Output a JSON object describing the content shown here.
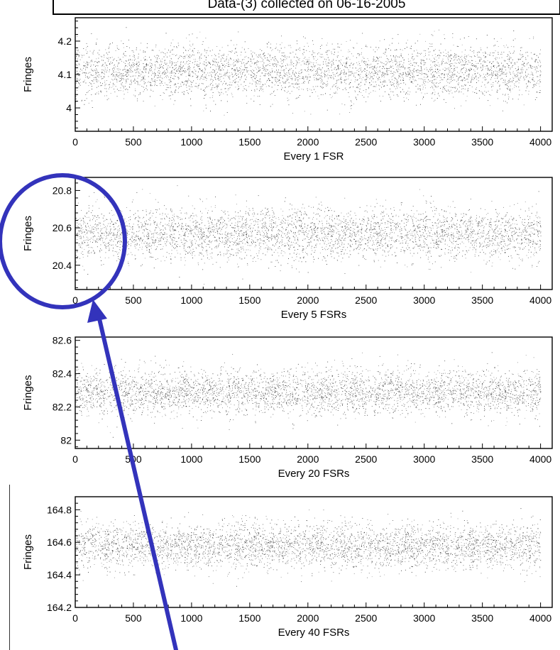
{
  "header": {
    "title": "Data-(3) collected on 06-16-2005"
  },
  "annotation": {
    "color": "#3333bb",
    "shape": "circle-with-arrow"
  },
  "chart_data": [
    {
      "type": "scatter",
      "xlabel": "Every 1 FSR",
      "ylabel": "Fringes",
      "xlim": [
        0,
        4100
      ],
      "ylim": [
        3.93,
        4.27
      ],
      "xticks": [
        0,
        500,
        1000,
        1500,
        2000,
        2500,
        3000,
        3500,
        4000
      ],
      "xtick_labels": [
        "0",
        "500",
        "1000",
        "1500",
        "2000",
        "2500",
        "3000",
        "3500",
        "4000"
      ],
      "yticks": [
        4,
        4.1,
        4.2
      ],
      "ytick_labels": [
        "4",
        "4.1",
        "4.2"
      ],
      "n_points": 4000,
      "center": 4.11,
      "spread": 0.04
    },
    {
      "type": "scatter",
      "xlabel": "Every 5 FSRs",
      "ylabel": "Fringes",
      "xlim": [
        0,
        4100
      ],
      "ylim": [
        20.27,
        20.87
      ],
      "xticks": [
        0,
        500,
        1000,
        1500,
        2000,
        2500,
        3000,
        3500,
        4000
      ],
      "xtick_labels": [
        "0",
        "500",
        "1000",
        "1500",
        "2000",
        "2500",
        "3000",
        "3500",
        "4000"
      ],
      "yticks": [
        20.4,
        20.6,
        20.8
      ],
      "ytick_labels": [
        "20.4",
        "20.6",
        "20.8"
      ],
      "n_points": 4000,
      "center": 20.57,
      "spread": 0.07
    },
    {
      "type": "scatter",
      "xlabel": "Every 20 FSRs",
      "ylabel": "Fringes",
      "xlim": [
        0,
        4100
      ],
      "ylim": [
        81.95,
        82.62
      ],
      "xticks": [
        0,
        500,
        1000,
        1500,
        2000,
        2500,
        3000,
        3500,
        4000
      ],
      "xtick_labels": [
        "0",
        "500",
        "1000",
        "1500",
        "2000",
        "2500",
        "3000",
        "3500",
        "4000"
      ],
      "yticks": [
        82,
        82.2,
        82.4,
        82.6
      ],
      "ytick_labels": [
        "82",
        "82.2",
        "82.4",
        "82.6"
      ],
      "n_points": 4000,
      "center": 82.29,
      "spread": 0.07
    },
    {
      "type": "scatter",
      "xlabel": "Every 40 FSRs",
      "ylabel": "Fringes",
      "xlim": [
        0,
        4100
      ],
      "ylim": [
        164.2,
        164.88
      ],
      "xticks": [
        0,
        500,
        1000,
        1500,
        2000,
        2500,
        3000,
        3500,
        4000
      ],
      "xtick_labels": [
        "0",
        "500",
        "1000",
        "1500",
        "2000",
        "2500",
        "3000",
        "3500",
        "4000"
      ],
      "yticks": [
        164.2,
        164.4,
        164.6,
        164.8
      ],
      "ytick_labels": [
        "164.2",
        "164.4",
        "164.6",
        "164.8"
      ],
      "n_points": 4000,
      "center": 164.58,
      "spread": 0.07
    }
  ]
}
